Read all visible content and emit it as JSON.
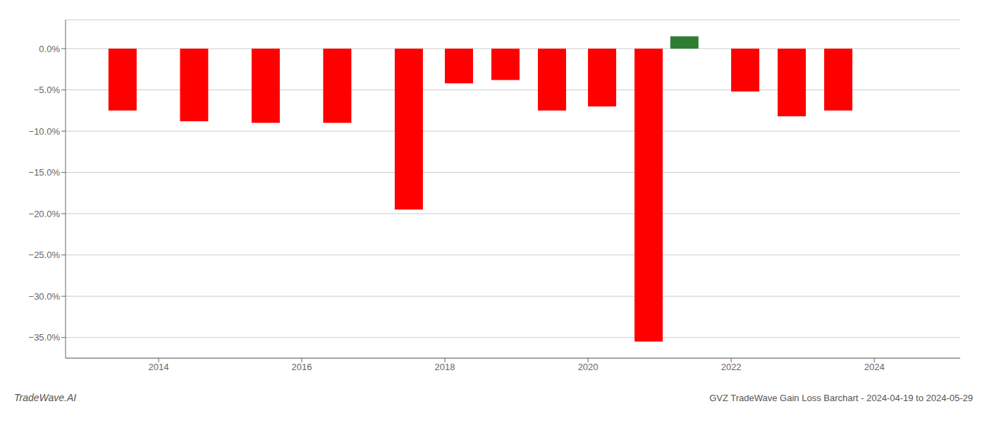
{
  "chart_data": {
    "type": "bar",
    "title": "GVZ TradeWave Gain Loss Barchart - 2024-04-19 to 2024-05-29",
    "annotations": [
      "TradeWave.AI"
    ],
    "x": [
      2013.5,
      2014.5,
      2015.5,
      2016.5,
      2017.5,
      2018.2,
      2018.85,
      2019.5,
      2020.2,
      2020.85,
      2021.35,
      2022.2,
      2022.85,
      2023.5
    ],
    "values": [
      -7.5,
      -8.8,
      -9.0,
      -9.0,
      -19.5,
      -4.2,
      -3.8,
      -7.5,
      -7.0,
      -35.5,
      1.5,
      -5.2,
      -8.2,
      -7.5
    ],
    "colors": [
      "#ff0000",
      "#ff0000",
      "#ff0000",
      "#ff0000",
      "#ff0000",
      "#ff0000",
      "#ff0000",
      "#ff0000",
      "#ff0000",
      "#ff0000",
      "#2e7d32",
      "#ff0000",
      "#ff0000",
      "#ff0000"
    ],
    "xlim": [
      2012.7,
      2025.2
    ],
    "ylim": [
      -37.5,
      3.5
    ],
    "xticks": [
      2014,
      2016,
      2018,
      2020,
      2022,
      2024
    ],
    "yticks": [
      {
        "value": 0.0,
        "label": "0.0%"
      },
      {
        "value": -5.0,
        "label": "−5.0%"
      },
      {
        "value": -10.0,
        "label": "−10.0%"
      },
      {
        "value": -15.0,
        "label": "−15.0%"
      },
      {
        "value": -20.0,
        "label": "−20.0%"
      },
      {
        "value": -25.0,
        "label": "−25.0%"
      },
      {
        "value": -30.0,
        "label": "−30.0%"
      },
      {
        "value": -35.0,
        "label": "−35.0%"
      }
    ],
    "grid": true
  }
}
